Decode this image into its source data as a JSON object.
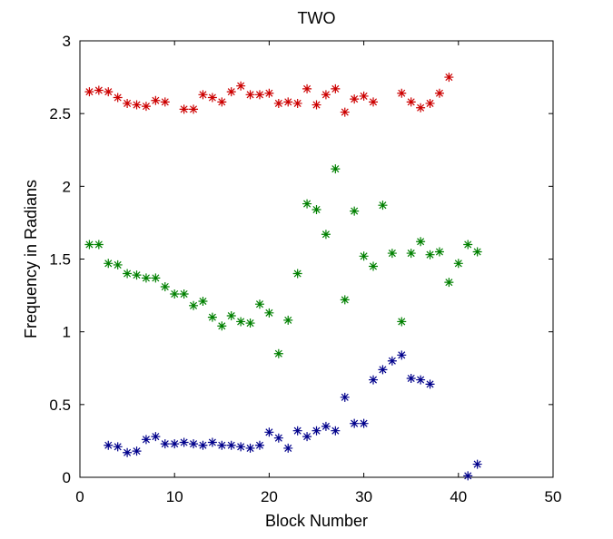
{
  "chart_data": {
    "type": "scatter",
    "title": "TWO",
    "xlabel": "Block Number",
    "ylabel": "Frequency in Radians",
    "xlim": [
      0,
      50
    ],
    "ylim": [
      0,
      3
    ],
    "xticks": [
      0,
      10,
      20,
      30,
      40,
      50
    ],
    "yticks": [
      0,
      0.5,
      1,
      1.5,
      2,
      2.5,
      3
    ],
    "grid": false,
    "marker": "asterisk",
    "series": [
      {
        "color": "#cc0000",
        "points": [
          [
            1,
            2.65
          ],
          [
            2,
            2.66
          ],
          [
            3,
            2.65
          ],
          [
            4,
            2.61
          ],
          [
            5,
            2.57
          ],
          [
            6,
            2.56
          ],
          [
            7,
            2.55
          ],
          [
            8,
            2.59
          ],
          [
            9,
            2.58
          ],
          [
            11,
            2.53
          ],
          [
            12,
            2.53
          ],
          [
            13,
            2.63
          ],
          [
            14,
            2.61
          ],
          [
            15,
            2.58
          ],
          [
            16,
            2.65
          ],
          [
            17,
            2.69
          ],
          [
            18,
            2.63
          ],
          [
            19,
            2.63
          ],
          [
            20,
            2.64
          ],
          [
            21,
            2.57
          ],
          [
            22,
            2.58
          ],
          [
            23,
            2.57
          ],
          [
            24,
            2.67
          ],
          [
            25,
            2.56
          ],
          [
            26,
            2.63
          ],
          [
            27,
            2.67
          ],
          [
            28,
            2.51
          ],
          [
            29,
            2.6
          ],
          [
            30,
            2.62
          ],
          [
            31,
            2.58
          ],
          [
            34,
            2.64
          ],
          [
            35,
            2.58
          ],
          [
            36,
            2.54
          ],
          [
            37,
            2.57
          ],
          [
            38,
            2.64
          ],
          [
            39,
            2.75
          ]
        ]
      },
      {
        "color": "#008000",
        "points": [
          [
            1,
            1.6
          ],
          [
            2,
            1.6
          ],
          [
            3,
            1.47
          ],
          [
            4,
            1.46
          ],
          [
            5,
            1.4
          ],
          [
            6,
            1.39
          ],
          [
            7,
            1.37
          ],
          [
            8,
            1.37
          ],
          [
            9,
            1.31
          ],
          [
            10,
            1.26
          ],
          [
            11,
            1.26
          ],
          [
            12,
            1.18
          ],
          [
            13,
            1.21
          ],
          [
            14,
            1.1
          ],
          [
            15,
            1.04
          ],
          [
            16,
            1.11
          ],
          [
            17,
            1.07
          ],
          [
            18,
            1.06
          ],
          [
            19,
            1.19
          ],
          [
            20,
            1.13
          ],
          [
            21,
            0.85
          ],
          [
            22,
            1.08
          ],
          [
            23,
            1.4
          ],
          [
            24,
            1.88
          ],
          [
            25,
            1.84
          ],
          [
            26,
            1.67
          ],
          [
            27,
            2.12
          ],
          [
            28,
            1.22
          ],
          [
            29,
            1.83
          ],
          [
            30,
            1.52
          ],
          [
            31,
            1.45
          ],
          [
            32,
            1.87
          ],
          [
            33,
            1.54
          ],
          [
            34,
            1.07
          ],
          [
            35,
            1.54
          ],
          [
            36,
            1.62
          ],
          [
            37,
            1.53
          ],
          [
            38,
            1.55
          ],
          [
            39,
            1.34
          ],
          [
            40,
            1.47
          ],
          [
            41,
            1.6
          ],
          [
            42,
            1.55
          ]
        ]
      },
      {
        "color": "#00008b",
        "points": [
          [
            3,
            0.22
          ],
          [
            4,
            0.21
          ],
          [
            5,
            0.17
          ],
          [
            6,
            0.18
          ],
          [
            7,
            0.26
          ],
          [
            8,
            0.28
          ],
          [
            9,
            0.23
          ],
          [
            10,
            0.23
          ],
          [
            11,
            0.24
          ],
          [
            12,
            0.23
          ],
          [
            13,
            0.22
          ],
          [
            14,
            0.24
          ],
          [
            15,
            0.22
          ],
          [
            16,
            0.22
          ],
          [
            17,
            0.21
          ],
          [
            18,
            0.2
          ],
          [
            19,
            0.22
          ],
          [
            20,
            0.31
          ],
          [
            21,
            0.27
          ],
          [
            22,
            0.2
          ],
          [
            23,
            0.32
          ],
          [
            24,
            0.28
          ],
          [
            25,
            0.32
          ],
          [
            26,
            0.35
          ],
          [
            27,
            0.32
          ],
          [
            28,
            0.55
          ],
          [
            29,
            0.37
          ],
          [
            30,
            0.37
          ],
          [
            31,
            0.67
          ],
          [
            32,
            0.74
          ],
          [
            33,
            0.8
          ],
          [
            34,
            0.84
          ],
          [
            35,
            0.68
          ],
          [
            36,
            0.67
          ],
          [
            37,
            0.64
          ],
          [
            41,
            0.01
          ],
          [
            42,
            0.09
          ]
        ]
      }
    ]
  }
}
